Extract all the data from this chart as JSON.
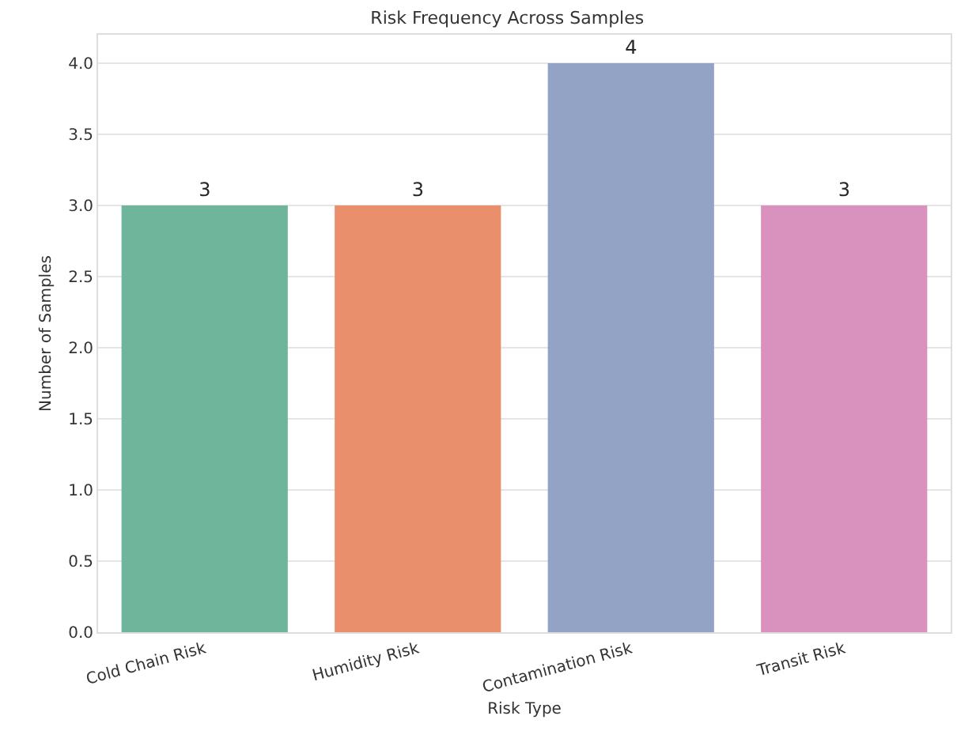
{
  "chart_data": {
    "type": "bar",
    "title": "Risk Frequency Across Samples",
    "xlabel": "Risk Type",
    "ylabel": "Number of Samples",
    "categories": [
      "Cold Chain Risk",
      "Humidity Risk",
      "Contamination Risk",
      "Transit Risk"
    ],
    "values": [
      3,
      3,
      4,
      3
    ],
    "colors": [
      "#6fb59b",
      "#e98f6c",
      "#92a3c6",
      "#d991bd"
    ],
    "ylim": [
      0,
      4.2
    ],
    "yticks": [
      {
        "value": 0,
        "label": "0.0"
      },
      {
        "value": 0.5,
        "label": "0.5"
      },
      {
        "value": 1,
        "label": "1.0"
      },
      {
        "value": 1.5,
        "label": "1.5"
      },
      {
        "value": 2,
        "label": "2.0"
      },
      {
        "value": 2.5,
        "label": "2.5"
      },
      {
        "value": 3,
        "label": "3.0"
      },
      {
        "value": 3.5,
        "label": "3.5"
      },
      {
        "value": 4,
        "label": "4.0"
      }
    ],
    "grid": "y",
    "data_labels": true
  }
}
